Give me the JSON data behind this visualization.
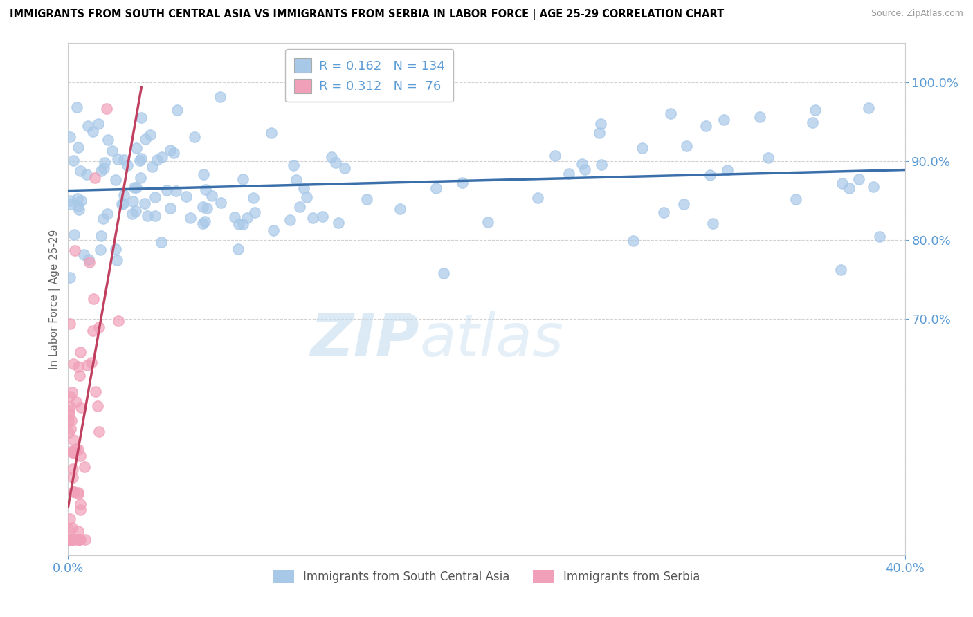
{
  "title": "IMMIGRANTS FROM SOUTH CENTRAL ASIA VS IMMIGRANTS FROM SERBIA IN LABOR FORCE | AGE 25-29 CORRELATION CHART",
  "source": "Source: ZipAtlas.com",
  "ylabel": "In Labor Force | Age 25-29",
  "legend_label1": "Immigrants from South Central Asia",
  "legend_label2": "Immigrants from Serbia",
  "R1": 0.162,
  "N1": 134,
  "R2": 0.312,
  "N2": 76,
  "blue_color": "#a8c8e8",
  "pink_color": "#f0a0b8",
  "blue_line_color": "#3a6faa",
  "pink_line_color": "#c04060",
  "xlim": [
    0.0,
    0.4
  ],
  "ylim": [
    0.4,
    1.05
  ],
  "yticks": [
    0.7,
    0.8,
    0.9,
    1.0
  ],
  "xticks": [
    0.0,
    0.4
  ],
  "tick_color": "#5b9bd5",
  "watermark1": "ZIP",
  "watermark2": "atlas"
}
